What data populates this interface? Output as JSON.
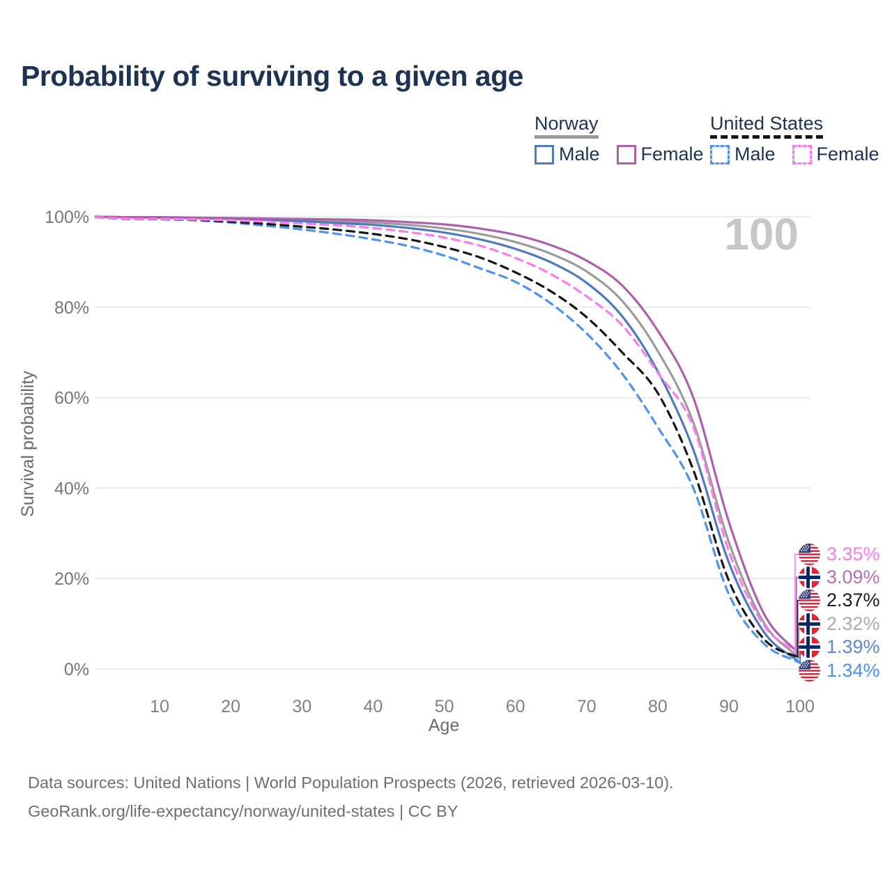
{
  "title": "Probability of surviving to a given age",
  "watermark": "100",
  "legend": {
    "groups": [
      {
        "name": "Norway",
        "line_style": "solid",
        "underline_color": "#9b9b9b",
        "items": [
          {
            "label": "Male",
            "color": "#4b7bbd"
          },
          {
            "label": "Female",
            "color": "#ad5fad"
          }
        ]
      },
      {
        "name": "United States",
        "line_style": "dashed",
        "underline_color": "#141414",
        "items": [
          {
            "label": "Male",
            "color": "#4b92f4"
          },
          {
            "label": "Female",
            "color": "#fb7bec"
          }
        ]
      }
    ]
  },
  "chart_data": {
    "type": "line",
    "title": "Probability of surviving to a given age",
    "xlabel": "Age",
    "ylabel": "Survival probability",
    "xlim": [
      1,
      100
    ],
    "ylim": [
      0,
      100
    ],
    "x_ticks": [
      10,
      20,
      30,
      40,
      50,
      60,
      70,
      80,
      90,
      100
    ],
    "y_ticks": [
      0,
      20,
      40,
      60,
      80,
      100
    ],
    "y_tick_suffix": "%",
    "grid": "horizontal",
    "legend_position": "top-right",
    "x": [
      1,
      5,
      10,
      15,
      20,
      25,
      30,
      35,
      40,
      45,
      50,
      55,
      60,
      65,
      70,
      75,
      80,
      85,
      90,
      95,
      100
    ],
    "series": [
      {
        "name": "Norway Total",
        "color": "#9b9b9b",
        "dash": "solid",
        "flag": "norway",
        "values": [
          100,
          99.9,
          99.8,
          99.7,
          99.6,
          99.4,
          99.2,
          99.0,
          98.7,
          98.2,
          97.4,
          96.2,
          94.4,
          91.8,
          87.9,
          81.4,
          70.3,
          54.5,
          28.0,
          10.0,
          2.32
        ]
      },
      {
        "name": "Norway Male",
        "color": "#4b7bbd",
        "dash": "solid",
        "flag": "norway",
        "values": [
          100,
          99.9,
          99.8,
          99.7,
          99.5,
          99.3,
          99.0,
          98.6,
          98.2,
          97.5,
          96.5,
          95.0,
          92.9,
          89.9,
          85.4,
          78.0,
          65.8,
          48.5,
          23.5,
          8.0,
          1.39
        ]
      },
      {
        "name": "Norway Female",
        "color": "#ad5fad",
        "dash": "solid",
        "flag": "norway",
        "values": [
          100,
          99.9,
          99.9,
          99.8,
          99.7,
          99.6,
          99.5,
          99.4,
          99.2,
          98.8,
          98.3,
          97.4,
          96.0,
          93.7,
          90.3,
          84.8,
          74.8,
          60.0,
          32.5,
          12.0,
          3.09
        ]
      },
      {
        "name": "United States Male",
        "color": "#4b92f4",
        "dash": "dashed",
        "flag": "us",
        "values": [
          99.9,
          99.5,
          99.4,
          99.2,
          98.7,
          98.0,
          97.2,
          96.2,
          95.0,
          93.5,
          91.4,
          88.6,
          85.6,
          80.8,
          74.2,
          65.3,
          53.5,
          40.0,
          16.5,
          5.5,
          1.34
        ]
      },
      {
        "name": "United States Total",
        "color": "#151515",
        "dash": "dashed",
        "flag": "us",
        "values": [
          99.9,
          99.6,
          99.5,
          99.3,
          98.9,
          98.4,
          97.8,
          97.1,
          96.2,
          95.0,
          93.3,
          91.0,
          87.7,
          83.5,
          77.8,
          70.0,
          61.0,
          44.0,
          19.5,
          6.5,
          2.37
        ]
      },
      {
        "name": "United States Female",
        "color": "#fb7bec",
        "dash": "dashed",
        "flag": "us",
        "values": [
          99.9,
          99.6,
          99.5,
          99.4,
          99.2,
          98.9,
          98.5,
          98.1,
          97.5,
          96.6,
          95.4,
          93.6,
          90.9,
          87.3,
          82.4,
          76.0,
          65.5,
          53.5,
          26.0,
          9.5,
          3.35
        ]
      }
    ],
    "end_labels": [
      {
        "series": "United States Female",
        "value": "3.35%",
        "text_color": "#fb7bec"
      },
      {
        "series": "Norway Female",
        "value": "3.09%",
        "text_color": "#b471b1"
      },
      {
        "series": "United States Total",
        "value": "2.37%",
        "text_color": "#1a1a1a"
      },
      {
        "series": "Norway Total",
        "value": "2.32%",
        "text_color": "#ababab"
      },
      {
        "series": "Norway Male",
        "value": "1.39%",
        "text_color": "#5c88c7"
      },
      {
        "series": "United States Male",
        "value": "1.34%",
        "text_color": "#4b92f4"
      }
    ]
  },
  "footer": {
    "line1": "Data sources: United Nations | World Population Prospects (2026, retrieved 2026-03-10).",
    "line2": "GeoRank.org/life-expectancy/norway/united-states | CC BY"
  }
}
